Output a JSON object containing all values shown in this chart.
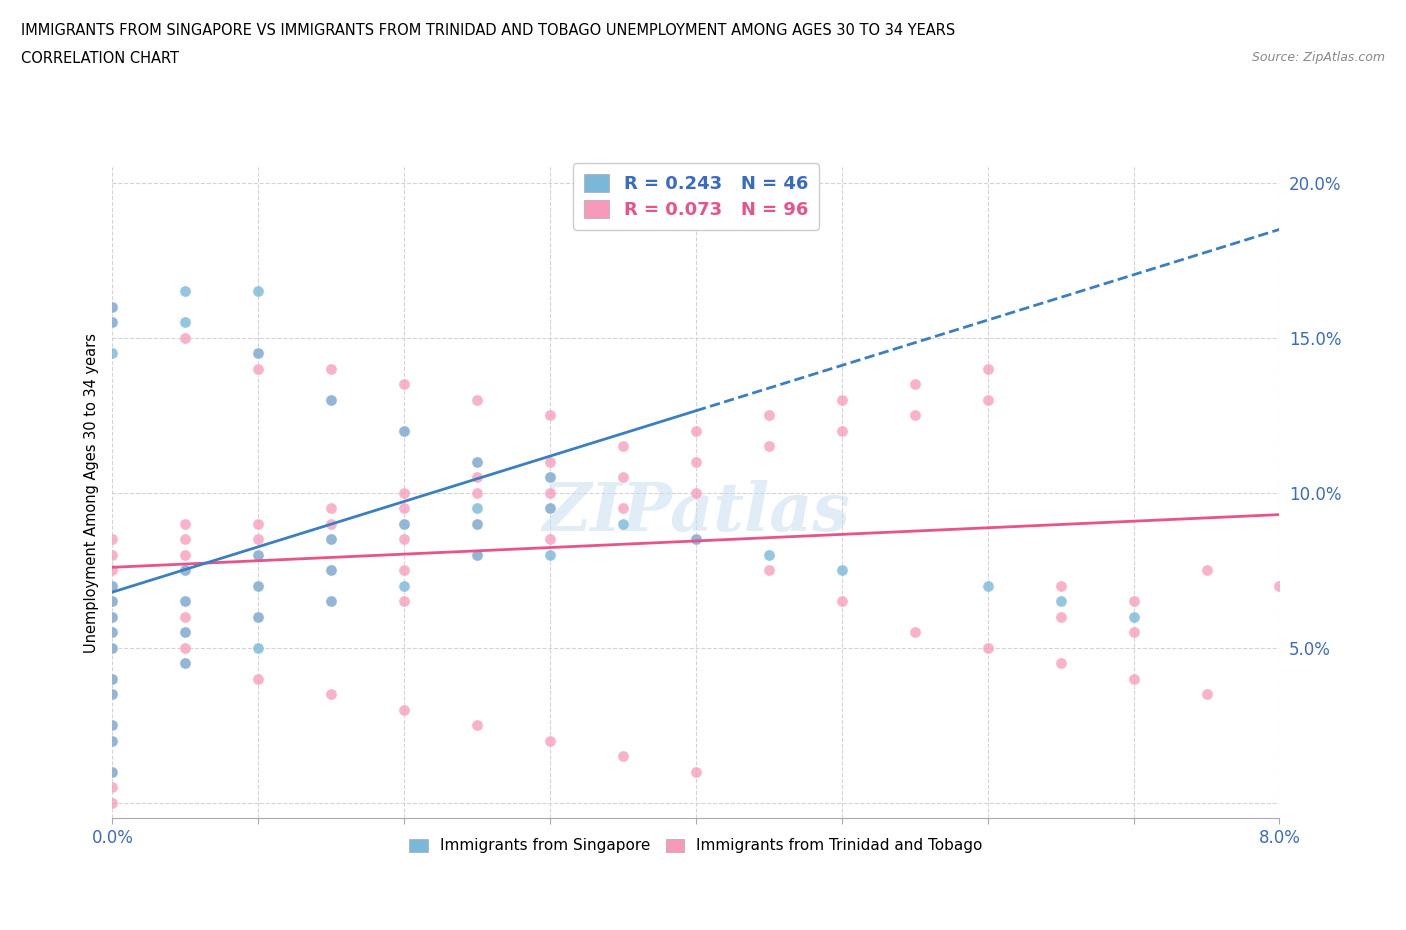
{
  "title_line1": "IMMIGRANTS FROM SINGAPORE VS IMMIGRANTS FROM TRINIDAD AND TOBAGO UNEMPLOYMENT AMONG AGES 30 TO 34 YEARS",
  "title_line2": "CORRELATION CHART",
  "source_text": "Source: ZipAtlas.com",
  "ylabel": "Unemployment Among Ages 30 to 34 years",
  "xlim": [
    0.0,
    0.08
  ],
  "ylim": [
    -0.005,
    0.205
  ],
  "color_singapore": "#7ab8d9",
  "color_trinidad": "#f799bb",
  "color_trend_singapore": "#3a7fc1",
  "color_trend_trinidad": "#e8538a",
  "R_singapore": 0.243,
  "N_singapore": 46,
  "R_trinidad": 0.073,
  "N_trinidad": 96,
  "watermark_text": "ZIPatlas",
  "sg_trend_x0": 0.0,
  "sg_trend_y0": 0.068,
  "sg_trend_x1": 0.08,
  "sg_trend_y1": 0.185,
  "tt_trend_x0": 0.0,
  "tt_trend_y0": 0.076,
  "tt_trend_x1": 0.08,
  "tt_trend_y1": 0.093,
  "sg_x": [
    0.0,
    0.0,
    0.0,
    0.0,
    0.0,
    0.0,
    0.0,
    0.0,
    0.0,
    0.0,
    0.005,
    0.005,
    0.005,
    0.005,
    0.01,
    0.01,
    0.01,
    0.01,
    0.015,
    0.015,
    0.015,
    0.02,
    0.02,
    0.025,
    0.025,
    0.0,
    0.0,
    0.0,
    0.005,
    0.005,
    0.01,
    0.01,
    0.015,
    0.02,
    0.025,
    0.025,
    0.03,
    0.03,
    0.03,
    0.035,
    0.04,
    0.045,
    0.05,
    0.06,
    0.065,
    0.07
  ],
  "sg_y": [
    0.07,
    0.065,
    0.06,
    0.055,
    0.05,
    0.04,
    0.035,
    0.025,
    0.02,
    0.01,
    0.075,
    0.065,
    0.055,
    0.045,
    0.08,
    0.07,
    0.06,
    0.05,
    0.085,
    0.075,
    0.065,
    0.09,
    0.07,
    0.095,
    0.08,
    0.16,
    0.155,
    0.145,
    0.165,
    0.155,
    0.165,
    0.145,
    0.13,
    0.12,
    0.11,
    0.09,
    0.105,
    0.095,
    0.08,
    0.09,
    0.085,
    0.08,
    0.075,
    0.07,
    0.065,
    0.06
  ],
  "tt_x": [
    0.0,
    0.0,
    0.0,
    0.0,
    0.0,
    0.0,
    0.0,
    0.0,
    0.0,
    0.0,
    0.0,
    0.0,
    0.0,
    0.0,
    0.0,
    0.005,
    0.005,
    0.005,
    0.005,
    0.005,
    0.005,
    0.005,
    0.005,
    0.01,
    0.01,
    0.01,
    0.01,
    0.01,
    0.015,
    0.015,
    0.015,
    0.015,
    0.015,
    0.02,
    0.02,
    0.02,
    0.02,
    0.02,
    0.02,
    0.025,
    0.025,
    0.025,
    0.025,
    0.03,
    0.03,
    0.03,
    0.03,
    0.035,
    0.035,
    0.04,
    0.04,
    0.04,
    0.045,
    0.045,
    0.05,
    0.05,
    0.055,
    0.055,
    0.06,
    0.06,
    0.065,
    0.065,
    0.07,
    0.07,
    0.075,
    0.08,
    0.01,
    0.015,
    0.02,
    0.025,
    0.03,
    0.035,
    0.04,
    0.045,
    0.05,
    0.055,
    0.06,
    0.065,
    0.07,
    0.075,
    0.005,
    0.01,
    0.015,
    0.02,
    0.025,
    0.03,
    0.035,
    0.04,
    0.0,
    0.0,
    0.005,
    0.01,
    0.015,
    0.02,
    0.025,
    0.03
  ],
  "tt_y": [
    0.085,
    0.08,
    0.075,
    0.07,
    0.065,
    0.06,
    0.055,
    0.05,
    0.04,
    0.035,
    0.025,
    0.02,
    0.01,
    0.005,
    0.0,
    0.09,
    0.085,
    0.08,
    0.075,
    0.065,
    0.06,
    0.055,
    0.05,
    0.09,
    0.085,
    0.08,
    0.07,
    0.06,
    0.095,
    0.09,
    0.085,
    0.075,
    0.065,
    0.1,
    0.095,
    0.09,
    0.085,
    0.075,
    0.065,
    0.105,
    0.1,
    0.09,
    0.08,
    0.11,
    0.105,
    0.095,
    0.085,
    0.115,
    0.105,
    0.12,
    0.11,
    0.1,
    0.125,
    0.115,
    0.13,
    0.12,
    0.135,
    0.125,
    0.14,
    0.13,
    0.07,
    0.06,
    0.065,
    0.055,
    0.075,
    0.07,
    0.14,
    0.13,
    0.12,
    0.11,
    0.1,
    0.095,
    0.085,
    0.075,
    0.065,
    0.055,
    0.05,
    0.045,
    0.04,
    0.035,
    0.045,
    0.04,
    0.035,
    0.03,
    0.025,
    0.02,
    0.015,
    0.01,
    0.16,
    0.155,
    0.15,
    0.145,
    0.14,
    0.135,
    0.13,
    0.125
  ]
}
